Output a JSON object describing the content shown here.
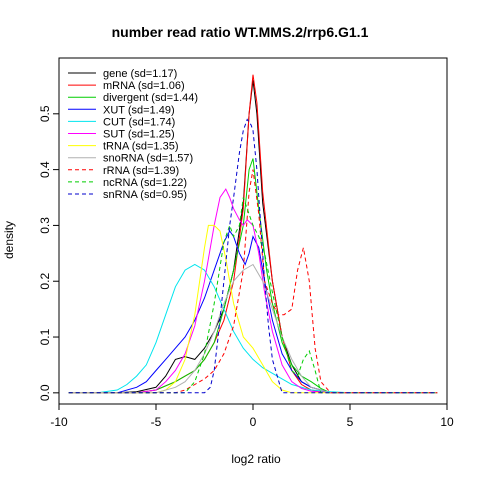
{
  "chart_data": {
    "type": "line",
    "title": "number read ratio WT.MMS.2/rrp6.G1.1",
    "xlabel": "log2 ratio",
    "ylabel": "density",
    "xlim": [
      -10,
      10
    ],
    "ylim": [
      -0.02,
      0.6
    ],
    "x_ticks": [
      -10,
      -5,
      0,
      5,
      10
    ],
    "x_tick_labels": [
      "-10",
      "-5",
      "0",
      "5",
      "10"
    ],
    "y_ticks": [
      0.0,
      0.1,
      0.2,
      0.3,
      0.4,
      0.5
    ],
    "y_tick_labels": [
      "0.0",
      "0.1",
      "0.2",
      "0.3",
      "0.4",
      "0.5"
    ],
    "grid": false,
    "legend_position": "top-left",
    "series": [
      {
        "name": "gene (sd=1.17)",
        "color": "#000000",
        "dash": "solid",
        "x": [
          -9.5,
          -7,
          -6,
          -5,
          -4.5,
          -4,
          -3.5,
          -3,
          -2.5,
          -2,
          -1.5,
          -1,
          -0.5,
          -0.2,
          0,
          0.2,
          0.5,
          1,
          1.5,
          2,
          2.5,
          3,
          3.5,
          4,
          5,
          9.5
        ],
        "y": [
          0,
          0,
          0.002,
          0.01,
          0.03,
          0.06,
          0.065,
          0.06,
          0.08,
          0.11,
          0.15,
          0.22,
          0.34,
          0.5,
          0.56,
          0.5,
          0.34,
          0.2,
          0.1,
          0.05,
          0.02,
          0.01,
          0.005,
          0,
          0,
          0
        ]
      },
      {
        "name": "mRNA (sd=1.06)",
        "color": "#ff0000",
        "dash": "solid",
        "x": [
          -9.5,
          -6,
          -5,
          -4,
          -3.5,
          -3,
          -2.5,
          -2,
          -1.5,
          -1,
          -0.5,
          -0.2,
          0,
          0.2,
          0.5,
          1,
          1.5,
          2,
          2.5,
          3,
          3.5,
          4,
          9.5
        ],
        "y": [
          0,
          0,
          0.005,
          0.02,
          0.03,
          0.04,
          0.06,
          0.09,
          0.13,
          0.2,
          0.33,
          0.5,
          0.57,
          0.52,
          0.36,
          0.2,
          0.1,
          0.04,
          0.015,
          0.005,
          0.002,
          0,
          0
        ]
      },
      {
        "name": "divergent (sd=1.44)",
        "color": "#00cd00",
        "dash": "solid",
        "x": [
          -9.5,
          -6,
          -5,
          -4,
          -3.5,
          -3,
          -2.5,
          -2,
          -1.5,
          -1,
          -0.5,
          -0.2,
          0,
          0.3,
          0.7,
          1,
          1.5,
          2,
          2.5,
          3,
          3.5,
          4,
          9.5
        ],
        "y": [
          0,
          0,
          0.005,
          0.02,
          0.03,
          0.04,
          0.06,
          0.09,
          0.15,
          0.22,
          0.3,
          0.4,
          0.42,
          0.33,
          0.22,
          0.16,
          0.09,
          0.05,
          0.03,
          0.02,
          0.008,
          0,
          0
        ]
      },
      {
        "name": "XUT (sd=1.49)",
        "color": "#0000ff",
        "dash": "solid",
        "x": [
          -9.5,
          -7,
          -6,
          -5.5,
          -5,
          -4.5,
          -4,
          -3.5,
          -3,
          -2.5,
          -2,
          -1.5,
          -1.2,
          -1,
          -0.7,
          -0.4,
          -0.2,
          0,
          0.3,
          0.6,
          1,
          1.5,
          2,
          2.5,
          3,
          4,
          9.5
        ],
        "y": [
          0,
          0,
          0.01,
          0.02,
          0.04,
          0.06,
          0.08,
          0.1,
          0.13,
          0.17,
          0.22,
          0.27,
          0.29,
          0.28,
          0.25,
          0.23,
          0.25,
          0.28,
          0.26,
          0.2,
          0.13,
          0.07,
          0.04,
          0.02,
          0.01,
          0,
          0
        ]
      },
      {
        "name": "CUT (sd=1.74)",
        "color": "#00e5ee",
        "dash": "solid",
        "x": [
          -9.5,
          -8,
          -7,
          -6.5,
          -6,
          -5.5,
          -5,
          -4.5,
          -4,
          -3.5,
          -3,
          -2.5,
          -2,
          -1.5,
          -1,
          -0.5,
          0,
          0.5,
          1,
          1.5,
          2,
          3,
          4,
          5,
          9.5
        ],
        "y": [
          0,
          0,
          0.005,
          0.015,
          0.03,
          0.05,
          0.09,
          0.14,
          0.19,
          0.22,
          0.23,
          0.22,
          0.19,
          0.15,
          0.11,
          0.08,
          0.06,
          0.045,
          0.035,
          0.025,
          0.015,
          0.005,
          0.002,
          0,
          0
        ]
      },
      {
        "name": "SUT (sd=1.25)",
        "color": "#ff00ff",
        "dash": "solid",
        "x": [
          -9.5,
          -6,
          -5,
          -4.5,
          -4,
          -3.5,
          -3,
          -2.5,
          -2,
          -1.7,
          -1.4,
          -1.2,
          -1,
          -0.7,
          -0.5,
          -0.3,
          0,
          0.3,
          0.6,
          1,
          1.5,
          2,
          2.5,
          3,
          4,
          9.5
        ],
        "y": [
          0,
          0,
          0.005,
          0.02,
          0.04,
          0.07,
          0.12,
          0.2,
          0.3,
          0.35,
          0.365,
          0.35,
          0.33,
          0.31,
          0.3,
          0.31,
          0.3,
          0.25,
          0.18,
          0.11,
          0.05,
          0.02,
          0.008,
          0.003,
          0,
          0
        ]
      },
      {
        "name": "tRNA (sd=1.35)",
        "color": "#ffff00",
        "dash": "solid",
        "x": [
          -9.5,
          -5,
          -4.5,
          -4,
          -3.5,
          -3,
          -2.5,
          -2.3,
          -2,
          -1.7,
          -1.4,
          -1,
          -0.5,
          0,
          0.5,
          1,
          1.5,
          2,
          9.5
        ],
        "y": [
          0,
          0,
          0.005,
          0.02,
          0.06,
          0.14,
          0.26,
          0.3,
          0.3,
          0.29,
          0.24,
          0.16,
          0.1,
          0.08,
          0.05,
          0.02,
          0.005,
          0,
          0
        ]
      },
      {
        "name": "snoRNA (sd=1.57)",
        "color": "#b0b0b0",
        "dash": "solid",
        "x": [
          -9.5,
          -5,
          -4,
          -3.5,
          -3,
          -2.5,
          -2,
          -1.5,
          -1,
          -0.5,
          0,
          0.5,
          1,
          1.5,
          2,
          2.5,
          3,
          4,
          9.5
        ],
        "y": [
          0,
          0,
          0.01,
          0.02,
          0.04,
          0.07,
          0.11,
          0.16,
          0.2,
          0.22,
          0.23,
          0.2,
          0.15,
          0.1,
          0.06,
          0.03,
          0.01,
          0,
          0
        ]
      },
      {
        "name": "rRNA (sd=1.39)",
        "color": "#ff0000",
        "dash": "dashed",
        "x": [
          -9.5,
          -4,
          -3.5,
          -3,
          -2.5,
          -2,
          -1.5,
          -1,
          -0.5,
          -0.2,
          0,
          0.3,
          0.6,
          1,
          1.3,
          1.6,
          2,
          2.3,
          2.6,
          2.9,
          3.2,
          3.5,
          4,
          9.5
        ],
        "y": [
          0,
          0,
          0.005,
          0.015,
          0.025,
          0.04,
          0.07,
          0.12,
          0.22,
          0.36,
          0.4,
          0.32,
          0.2,
          0.16,
          0.14,
          0.14,
          0.15,
          0.22,
          0.26,
          0.2,
          0.08,
          0.02,
          0,
          0
        ]
      },
      {
        "name": "ncRNA (sd=1.22)",
        "color": "#00cd00",
        "dash": "dashed",
        "x": [
          -9.5,
          -3.5,
          -3,
          -2.5,
          -2,
          -1.5,
          -1.2,
          -1,
          -0.7,
          -0.5,
          -0.3,
          0,
          0.3,
          0.6,
          1,
          1.5,
          2,
          2.3,
          2.6,
          2.9,
          3.2,
          3.5,
          9.5
        ],
        "y": [
          0,
          0,
          0.02,
          0.07,
          0.16,
          0.27,
          0.3,
          0.28,
          0.3,
          0.35,
          0.33,
          0.3,
          0.28,
          0.25,
          0.18,
          0.1,
          0.04,
          0.03,
          0.06,
          0.075,
          0.04,
          0,
          0
        ]
      },
      {
        "name": "snRNA (sd=0.95)",
        "color": "#0000cd",
        "dash": "dashed",
        "x": [
          -9.5,
          -2.5,
          -2.2,
          -2,
          -1.8,
          -1.5,
          -1.2,
          -1,
          -0.7,
          -0.5,
          -0.3,
          -0.1,
          0,
          0.2,
          0.4,
          0.6,
          0.8,
          1,
          1.5,
          9.5
        ],
        "y": [
          0,
          0,
          0.01,
          0.04,
          0.1,
          0.2,
          0.3,
          0.35,
          0.43,
          0.47,
          0.49,
          0.48,
          0.47,
          0.4,
          0.3,
          0.2,
          0.12,
          0.06,
          0,
          0
        ]
      }
    ]
  }
}
